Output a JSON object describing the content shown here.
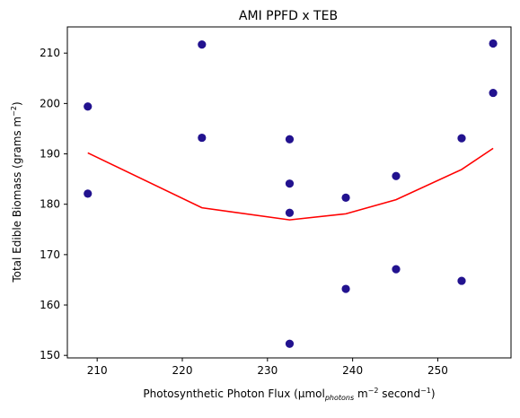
{
  "chart_data": {
    "type": "scatter",
    "title": "AMI PPFD x TEB",
    "xlabel": {
      "prefix": "Photosynthetic Photon Flux (µmol",
      "sub": "photons",
      "middle": " m",
      "sup1": "−2",
      "middle2": " second",
      "sup2": "−1",
      "suffix": ")"
    },
    "ylabel": {
      "prefix": "Total Edible Biomass (grams m",
      "sup": "−2",
      "suffix": ")"
    },
    "xlim": [
      206.5,
      258.6
    ],
    "ylim": [
      149.5,
      215.2
    ],
    "xticks": [
      210,
      220,
      230,
      240,
      250
    ],
    "yticks": [
      150,
      160,
      170,
      180,
      190,
      200,
      210
    ],
    "grid": false,
    "legend": "none",
    "series": [
      {
        "kind": "points",
        "color": "#22128f",
        "points": [
          [
            208.9,
            199.4
          ],
          [
            208.9,
            182.1
          ],
          [
            222.3,
            211.7
          ],
          [
            222.3,
            193.2
          ],
          [
            232.6,
            192.9
          ],
          [
            232.6,
            184.1
          ],
          [
            232.6,
            178.3
          ],
          [
            232.6,
            152.3
          ],
          [
            239.2,
            181.3
          ],
          [
            239.2,
            163.2
          ],
          [
            245.1,
            185.6
          ],
          [
            245.1,
            167.1
          ],
          [
            252.8,
            193.1
          ],
          [
            252.8,
            164.8
          ],
          [
            256.5,
            211.9
          ],
          [
            256.5,
            202.1
          ]
        ]
      },
      {
        "kind": "line",
        "color": "#ff0000",
        "points": [
          [
            208.9,
            190.2
          ],
          [
            222.3,
            179.3
          ],
          [
            232.6,
            176.9
          ],
          [
            239.2,
            178.1
          ],
          [
            245.1,
            180.9
          ],
          [
            252.8,
            186.9
          ],
          [
            256.5,
            191.1
          ]
        ]
      }
    ]
  }
}
